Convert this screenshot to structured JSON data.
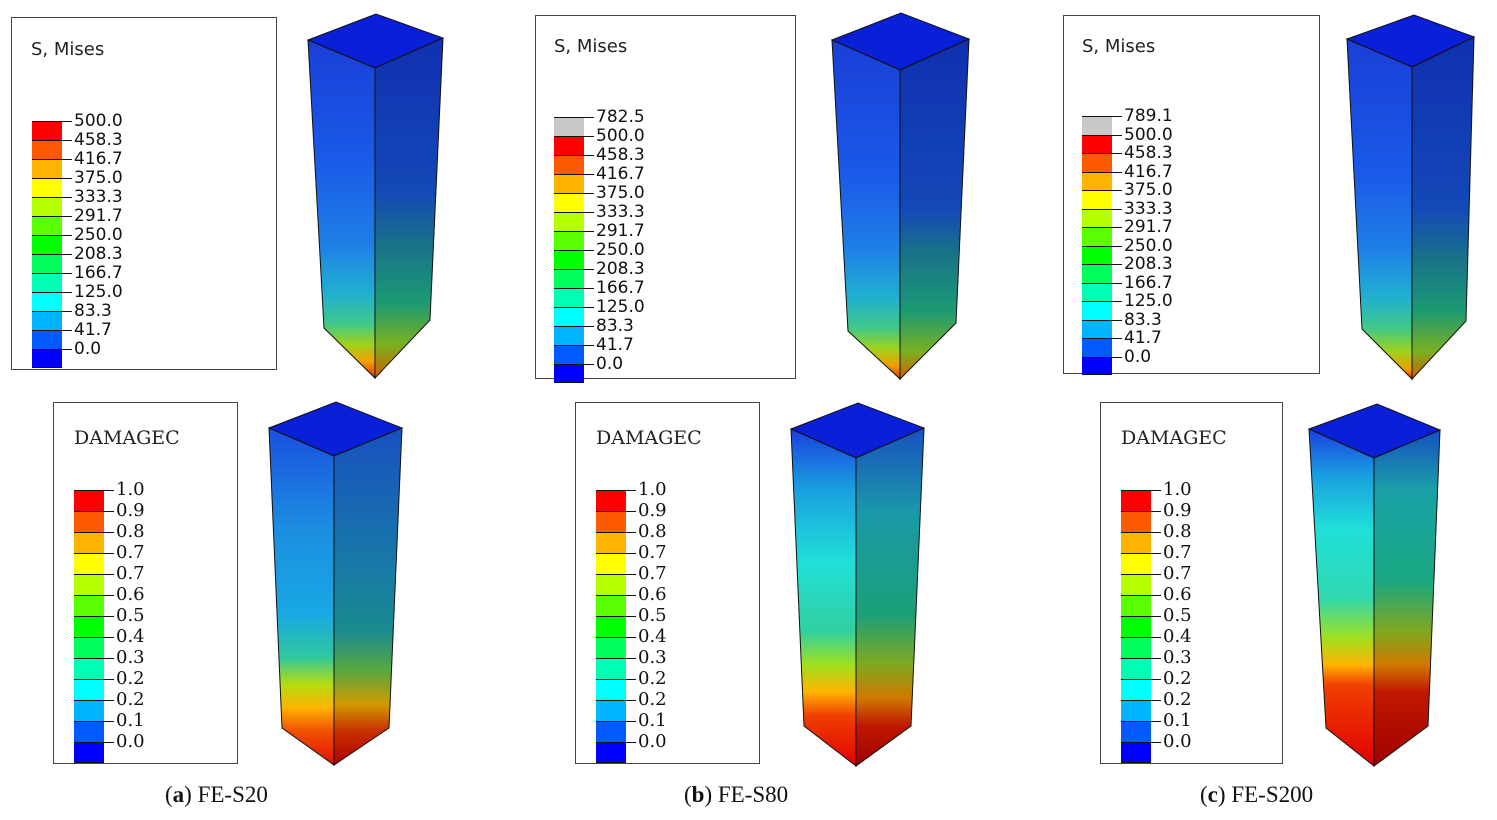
{
  "figures": [
    {
      "id": "a",
      "caption_open": "(",
      "caption_letter": "a",
      "caption_close": ")",
      "caption_text": " FE-S20",
      "stress_legend": {
        "title": "S, Mises",
        "labels": [
          "500.0",
          "458.3",
          "416.7",
          "375.0",
          "333.3",
          "291.7",
          "250.0",
          "208.3",
          "166.7",
          "125.0",
          "83.3",
          "41.7",
          "0.0"
        ]
      },
      "damage_legend": {
        "title": "DAMAGEC",
        "labels": [
          "1.0",
          "0.9",
          "0.8",
          "0.7",
          "0.7",
          "0.6",
          "0.5",
          "0.4",
          "0.3",
          "0.2",
          "0.2",
          "0.1",
          "0.0"
        ]
      }
    },
    {
      "id": "b",
      "caption_open": "(",
      "caption_letter": "b",
      "caption_close": ")",
      "caption_text": " FE-S80",
      "stress_legend": {
        "title": "S, Mises",
        "labels": [
          "782.5",
          "500.0",
          "458.3",
          "416.7",
          "375.0",
          "333.3",
          "291.7",
          "250.0",
          "208.3",
          "166.7",
          "125.0",
          "83.3",
          "41.7",
          "0.0"
        ]
      },
      "damage_legend": {
        "title": "DAMAGEC",
        "labels": [
          "1.0",
          "0.9",
          "0.8",
          "0.7",
          "0.7",
          "0.6",
          "0.5",
          "0.4",
          "0.3",
          "0.2",
          "0.2",
          "0.1",
          "0.0"
        ]
      }
    },
    {
      "id": "c",
      "caption_open": "(",
      "caption_letter": "c",
      "caption_close": ")",
      "caption_text": " FE-S200",
      "stress_legend": {
        "title": "S, Mises",
        "labels": [
          "789.1",
          "500.0",
          "458.3",
          "416.7",
          "375.0",
          "333.3",
          "291.7",
          "250.0",
          "208.3",
          "166.7",
          "125.0",
          "83.3",
          "41.7",
          "0.0"
        ]
      },
      "damage_legend": {
        "title": "DAMAGEC",
        "labels": [
          "1.0",
          "0.9",
          "0.8",
          "0.7",
          "0.7",
          "0.6",
          "0.5",
          "0.4",
          "0.3",
          "0.2",
          "0.2",
          "0.1",
          "0.0"
        ]
      }
    }
  ],
  "colors": {
    "contour_scale": [
      "#ff0000",
      "#ff5a00",
      "#ffb400",
      "#ffff00",
      "#b4ff00",
      "#5aff00",
      "#00ff00",
      "#00ff5a",
      "#00ffb4",
      "#00ffff",
      "#00b4ff",
      "#005aff",
      "#0000ff"
    ],
    "overflow": "#c8c8c8",
    "frame": "#444444"
  }
}
